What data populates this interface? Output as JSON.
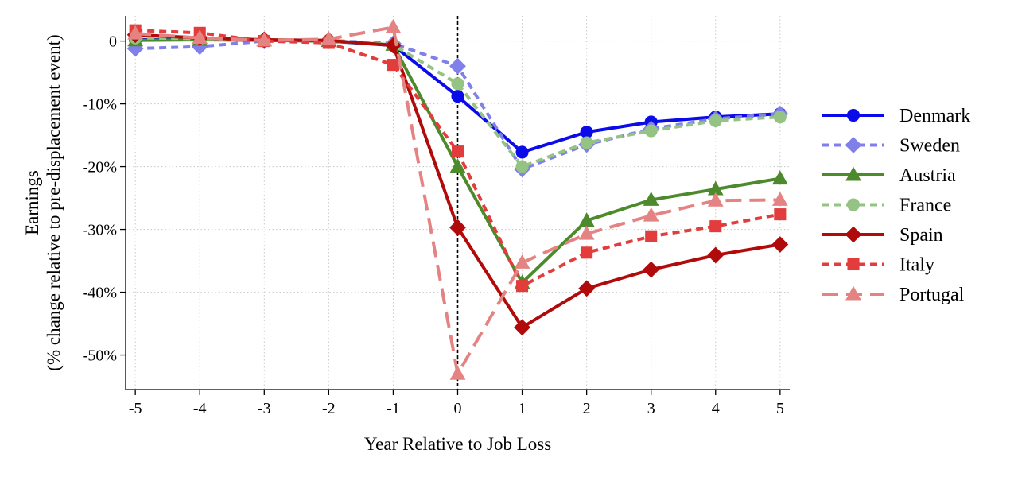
{
  "chart_data": {
    "type": "line",
    "title": "",
    "xlabel": "Year Relative to Job Loss",
    "ylabel_lines": [
      "Earnings",
      "(% change relative to pre-displacement event)"
    ],
    "x": [
      -5,
      -4,
      -3,
      -2,
      -1,
      0,
      1,
      2,
      3,
      4,
      5
    ],
    "xticks": [
      "-5",
      "-4",
      "-3",
      "-2",
      "-1",
      "0",
      "1",
      "2",
      "3",
      "4",
      "5"
    ],
    "yticks": [
      {
        "value": 0,
        "label": "0"
      },
      {
        "value": -10,
        "label": "-10%"
      },
      {
        "value": -20,
        "label": "-20%"
      },
      {
        "value": -30,
        "label": "-30%"
      },
      {
        "value": -40,
        "label": "-40%"
      },
      {
        "value": -50,
        "label": "-50%"
      }
    ],
    "xlim": [
      -5.15,
      5.15
    ],
    "ylim": [
      -55.5,
      4
    ],
    "grid": true,
    "reference_line_x": 0,
    "legend_position": "right",
    "series": [
      {
        "name": "Denmark",
        "color": "#0b0bea",
        "dash": "solid",
        "marker": "circle",
        "values": [
          0.2,
          0.3,
          0.1,
          0.0,
          -0.7,
          -8.8,
          -17.7,
          -14.5,
          -12.9,
          -12.1,
          -11.6
        ]
      },
      {
        "name": "Sweden",
        "color": "#8080ea",
        "dash": "dash",
        "marker": "diamond",
        "values": [
          -1.2,
          -0.9,
          0.0,
          0.1,
          -0.4,
          -4.0,
          -20.4,
          -16.5,
          -14.0,
          -12.4,
          -11.6
        ]
      },
      {
        "name": "Austria",
        "color": "#4c8a2c",
        "dash": "solid",
        "marker": "triangle",
        "values": [
          0.1,
          0.2,
          0.1,
          0.0,
          -0.6,
          -20.0,
          -38.5,
          -28.6,
          -25.3,
          -23.6,
          -21.9
        ]
      },
      {
        "name": "France",
        "color": "#94c384",
        "dash": "dash",
        "marker": "circle",
        "values": [
          0.5,
          0.4,
          0.2,
          0.1,
          -0.6,
          -6.8,
          -20.0,
          -16.2,
          -14.3,
          -12.7,
          -12.1
        ]
      },
      {
        "name": "Spain",
        "color": "#b10a0a",
        "dash": "solid",
        "marker": "diamond",
        "values": [
          1.0,
          0.5,
          0.2,
          0.1,
          -0.7,
          -29.7,
          -45.6,
          -39.4,
          -36.4,
          -34.1,
          -32.4
        ]
      },
      {
        "name": "Italy",
        "color": "#e23c3c",
        "dash": "dash",
        "marker": "square",
        "values": [
          1.7,
          1.3,
          0.0,
          -0.3,
          -3.8,
          -17.6,
          -39.0,
          -33.7,
          -31.1,
          -29.5,
          -27.6
        ]
      },
      {
        "name": "Portugal",
        "color": "#e58383",
        "dash": "longdash",
        "marker": "triangle",
        "values": [
          1.2,
          0.5,
          0.1,
          0.3,
          2.2,
          -53.0,
          -35.3,
          -30.7,
          -27.8,
          -25.4,
          -25.3
        ]
      }
    ]
  }
}
